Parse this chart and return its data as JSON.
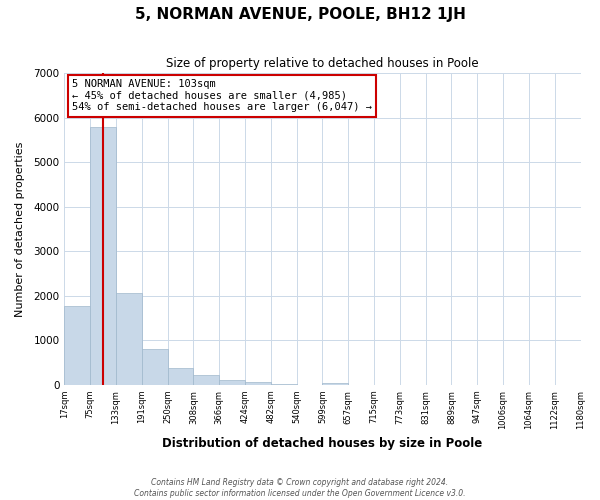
{
  "title": "5, NORMAN AVENUE, POOLE, BH12 1JH",
  "subtitle": "Size of property relative to detached houses in Poole",
  "xlabel": "Distribution of detached houses by size in Poole",
  "ylabel": "Number of detached properties",
  "bin_labels": [
    "17sqm",
    "75sqm",
    "133sqm",
    "191sqm",
    "250sqm",
    "308sqm",
    "366sqm",
    "424sqm",
    "482sqm",
    "540sqm",
    "599sqm",
    "657sqm",
    "715sqm",
    "773sqm",
    "831sqm",
    "889sqm",
    "947sqm",
    "1006sqm",
    "1064sqm",
    "1122sqm",
    "1180sqm"
  ],
  "bar_values": [
    1760,
    5780,
    2060,
    800,
    370,
    220,
    100,
    60,
    20,
    0,
    30,
    0,
    0,
    0,
    0,
    0,
    0,
    0,
    0,
    0
  ],
  "bar_color": "#c8d8e8",
  "bar_edge_color": "#a0b8cc",
  "vline_color": "#cc0000",
  "annotation_title": "5 NORMAN AVENUE: 103sqm",
  "annotation_line1": "← 45% of detached houses are smaller (4,985)",
  "annotation_line2": "54% of semi-detached houses are larger (6,047) →",
  "annotation_box_color": "#cc0000",
  "ylim": [
    0,
    7000
  ],
  "yticks": [
    0,
    1000,
    2000,
    3000,
    4000,
    5000,
    6000,
    7000
  ],
  "footer_line1": "Contains HM Land Registry data © Crown copyright and database right 2024.",
  "footer_line2": "Contains public sector information licensed under the Open Government Licence v3.0."
}
